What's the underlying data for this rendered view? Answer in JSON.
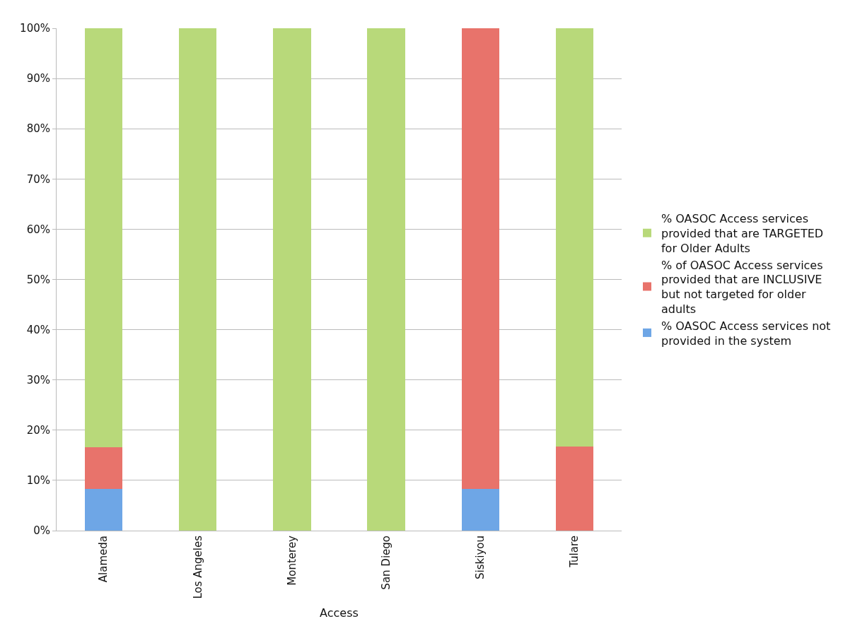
{
  "chart_data": {
    "type": "bar",
    "stacked": true,
    "xlabel": "Access",
    "categories": [
      "Alameda",
      "Los Angeles",
      "Monterey",
      "San Diego",
      "Siskiyou",
      "Tulare"
    ],
    "series": [
      {
        "name": "% OASOC Access services not provided in the system",
        "color": "#6ea6e6",
        "values": [
          8.3,
          0,
          0,
          0,
          8.3,
          0
        ]
      },
      {
        "name": "% of OASOC Access services provided that are INCLUSIVE but not targeted for older adults",
        "color": "#e8736b",
        "values": [
          8.3,
          0,
          0,
          0,
          91.7,
          16.7
        ]
      },
      {
        "name": "% OASOC Access services provided that are TARGETED for Older Adults",
        "color": "#b8d97a",
        "values": [
          83.4,
          100,
          100,
          100,
          0,
          83.3
        ]
      }
    ],
    "ylim": [
      0,
      100
    ],
    "yticks": [
      {
        "value": 0,
        "label": "0%"
      },
      {
        "value": 10,
        "label": "10%"
      },
      {
        "value": 20,
        "label": "20%"
      },
      {
        "value": 30,
        "label": "30%"
      },
      {
        "value": 40,
        "label": "40%"
      },
      {
        "value": 50,
        "label": "50%"
      },
      {
        "value": 60,
        "label": "60%"
      },
      {
        "value": 70,
        "label": "70%"
      },
      {
        "value": 80,
        "label": "80%"
      },
      {
        "value": 90,
        "label": "90%"
      },
      {
        "value": 100,
        "label": "100%"
      }
    ],
    "grid": "y",
    "legend": "right"
  }
}
